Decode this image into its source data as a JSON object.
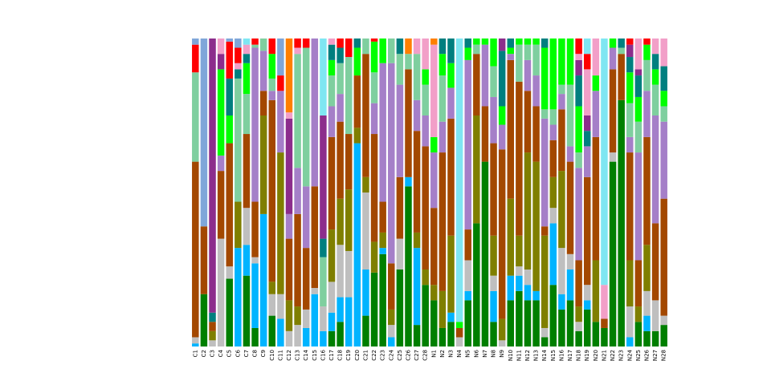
{
  "chart_data": {
    "type": "stacked_bar",
    "categories": [
      "C1",
      "C2",
      "C3",
      "C4",
      "C5",
      "C6",
      "C7",
      "C8",
      "C9",
      "C10",
      "C11",
      "C12",
      "C13",
      "C14",
      "C15",
      "C16",
      "C17",
      "C18",
      "C19",
      "C20",
      "C21",
      "C22",
      "C23",
      "C24",
      "C25",
      "C26",
      "C27",
      "C28",
      "N1",
      "N2",
      "N3",
      "N4",
      "N5",
      "N6",
      "N7",
      "N8",
      "N9",
      "N10",
      "N11",
      "N12",
      "N13",
      "N14",
      "N15",
      "N16",
      "N17",
      "N18",
      "N19",
      "N20",
      "N21",
      "N22",
      "N23",
      "N24",
      "N25",
      "N26",
      "N27",
      "N28"
    ],
    "ylim": [
      0,
      100
    ],
    "series": [
      {
        "color": "#007f00",
        "values": [
          0,
          17,
          0,
          0,
          22,
          0,
          23,
          6,
          0,
          10,
          0,
          0,
          0,
          0,
          0,
          0,
          5,
          8,
          0,
          0,
          10,
          24,
          30,
          0,
          25,
          52,
          7,
          20,
          15,
          6,
          8,
          0,
          15,
          40,
          60,
          8,
          0,
          15,
          18,
          15,
          15,
          3,
          20,
          12,
          15,
          5,
          12,
          8,
          6,
          60,
          80,
          0,
          8,
          5,
          5,
          7
        ]
      },
      {
        "color": "#00b4ff",
        "values": [
          1,
          0,
          0,
          0,
          0,
          32,
          10,
          21,
          43,
          0,
          9,
          0,
          0,
          6,
          17,
          5,
          6,
          8,
          16,
          66,
          15,
          0,
          2,
          3,
          0,
          3,
          25,
          0,
          0,
          0,
          3,
          0,
          3,
          0,
          0,
          10,
          0,
          8,
          5,
          5,
          3,
          0,
          20,
          5,
          10,
          0,
          3,
          0,
          0,
          0,
          0,
          3,
          0,
          5,
          0,
          0
        ]
      },
      {
        "color": "#bfbfbf",
        "values": [
          2,
          0,
          2,
          35,
          4,
          0,
          12,
          2,
          0,
          7,
          8,
          5,
          7,
          6,
          2,
          8,
          10,
          17,
          15,
          0,
          25,
          0,
          0,
          4,
          10,
          0,
          0,
          0,
          0,
          0,
          0,
          3,
          10,
          0,
          0,
          5,
          2,
          0,
          3,
          5,
          0,
          3,
          5,
          15,
          5,
          3,
          5,
          0,
          0,
          3,
          0,
          10,
          0,
          8,
          10,
          3
        ]
      },
      {
        "color": "#7f7f00",
        "values": [
          0,
          0,
          3,
          0,
          0,
          15,
          0,
          0,
          32,
          4,
          46,
          10,
          6,
          0,
          0,
          0,
          17,
          15,
          20,
          5,
          5,
          10,
          5,
          5,
          0,
          0,
          5,
          5,
          5,
          12,
          25,
          0,
          0,
          35,
          0,
          13,
          7,
          25,
          10,
          38,
          42,
          30,
          10,
          25,
          0,
          5,
          0,
          20,
          0,
          0,
          0,
          15,
          5,
          15,
          0,
          0
        ]
      },
      {
        "color": "#a34800",
        "values": [
          57,
          22,
          3,
          22,
          40,
          0,
          24,
          18,
          8,
          59,
          0,
          20,
          30,
          20,
          33,
          0,
          30,
          25,
          18,
          17,
          40,
          35,
          10,
          15,
          20,
          35,
          33,
          40,
          25,
          45,
          38,
          3,
          10,
          20,
          18,
          30,
          55,
          45,
          50,
          20,
          18,
          3,
          12,
          20,
          30,
          15,
          35,
          40,
          3,
          27,
          15,
          35,
          15,
          35,
          25,
          38
        ]
      },
      {
        "color": "#a57fc8",
        "values": [
          0,
          0,
          0,
          5,
          0,
          0,
          0,
          50,
          13,
          3,
          20,
          8,
          15,
          20,
          48,
          0,
          10,
          9,
          0,
          0,
          0,
          10,
          45,
          65,
          30,
          0,
          10,
          10,
          18,
          10,
          10,
          0,
          55,
          0,
          20,
          15,
          8,
          2,
          0,
          10,
          10,
          35,
          5,
          5,
          5,
          30,
          10,
          15,
          0,
          7,
          0,
          5,
          35,
          15,
          35,
          25
        ]
      },
      {
        "color": "#7fcf9f",
        "values": [
          29,
          0,
          0,
          0,
          0,
          40,
          13,
          1,
          4,
          4,
          0,
          0,
          37,
          45,
          0,
          16,
          10,
          10,
          25,
          0,
          5,
          10,
          0,
          8,
          10,
          5,
          15,
          10,
          0,
          15,
          0,
          0,
          0,
          3,
          0,
          10,
          0,
          0,
          12,
          5,
          10,
          3,
          5,
          3,
          20,
          5,
          0,
          0,
          0,
          0,
          2,
          11,
          10,
          10,
          10,
          5
        ]
      },
      {
        "color": "#00ff00",
        "values": [
          0,
          0,
          0,
          28,
          9,
          0,
          10,
          0,
          0,
          8,
          0,
          0,
          0,
          0,
          0,
          0,
          5,
          0,
          0,
          9,
          0,
          10,
          8,
          0,
          0,
          0,
          0,
          5,
          5,
          7,
          8,
          2,
          4,
          2,
          2,
          9,
          6,
          2,
          2,
          2,
          2,
          20,
          23,
          15,
          15,
          15,
          0,
          5,
          0,
          3,
          0,
          10,
          8,
          5,
          5,
          5
        ]
      },
      {
        "color": "#007f7f",
        "values": [
          0,
          0,
          3,
          0,
          12,
          3,
          3,
          0,
          0,
          0,
          0,
          0,
          0,
          0,
          0,
          6,
          5,
          5,
          0,
          3,
          0,
          0,
          0,
          0,
          5,
          0,
          0,
          0,
          0,
          5,
          8,
          0,
          3,
          0,
          0,
          0,
          18,
          3,
          0,
          0,
          0,
          3,
          0,
          0,
          0,
          10,
          5,
          0,
          0,
          0,
          3,
          5,
          7,
          0,
          5,
          8
        ]
      },
      {
        "color": "#8c2d8c",
        "values": [
          0,
          0,
          89,
          5,
          0,
          0,
          0,
          0,
          0,
          0,
          0,
          31,
          0,
          0,
          0,
          40,
          0,
          0,
          0,
          0,
          0,
          0,
          0,
          0,
          0,
          0,
          0,
          0,
          0,
          0,
          0,
          0,
          0,
          0,
          0,
          0,
          4,
          0,
          0,
          0,
          0,
          0,
          0,
          0,
          0,
          5,
          5,
          0,
          0,
          0,
          0,
          4,
          2,
          0,
          0,
          0
        ]
      },
      {
        "color": "#f29fc8",
        "values": [
          0,
          0,
          0,
          5,
          0,
          2,
          3,
          0,
          0,
          0,
          0,
          2,
          2,
          0,
          0,
          0,
          2,
          0,
          0,
          0,
          0,
          0,
          0,
          0,
          0,
          0,
          5,
          10,
          30,
          0,
          0,
          0,
          0,
          0,
          0,
          0,
          0,
          0,
          0,
          0,
          0,
          0,
          0,
          0,
          0,
          2,
          15,
          12,
          11,
          0,
          0,
          0,
          10,
          0,
          5,
          9
        ]
      },
      {
        "color": "#ff0000",
        "values": [
          9,
          0,
          0,
          0,
          12,
          5,
          0,
          2,
          0,
          5,
          5,
          0,
          3,
          3,
          0,
          0,
          0,
          3,
          6,
          0,
          0,
          1,
          0,
          0,
          0,
          0,
          0,
          0,
          0,
          0,
          0,
          0,
          0,
          0,
          0,
          0,
          0,
          0,
          0,
          0,
          0,
          0,
          0,
          0,
          0,
          5,
          5,
          0,
          0,
          0,
          0,
          2,
          0,
          2,
          0,
          0
        ]
      },
      {
        "color": "#7fe6f2",
        "values": [
          0,
          0,
          0,
          0,
          0,
          0,
          2,
          0,
          0,
          0,
          0,
          0,
          0,
          0,
          0,
          25,
          0,
          0,
          0,
          0,
          0,
          0,
          0,
          0,
          0,
          0,
          0,
          0,
          0,
          0,
          0,
          92,
          0,
          0,
          0,
          0,
          0,
          0,
          0,
          0,
          0,
          0,
          0,
          0,
          0,
          0,
          5,
          0,
          80,
          0,
          0,
          0,
          0,
          0,
          0,
          0
        ]
      },
      {
        "color": "#7fa6d9",
        "values": [
          2,
          61,
          0,
          0,
          1,
          3,
          0,
          0,
          0,
          0,
          12,
          0,
          0,
          0,
          0,
          0,
          0,
          0,
          0,
          0,
          0,
          0,
          0,
          0,
          0,
          0,
          0,
          0,
          0,
          0,
          0,
          0,
          0,
          0,
          0,
          0,
          0,
          0,
          0,
          0,
          0,
          0,
          0,
          0,
          0,
          0,
          0,
          0,
          0,
          0,
          0,
          0,
          0,
          0,
          0,
          0
        ]
      },
      {
        "color": "#ff7f00",
        "values": [
          0,
          0,
          0,
          0,
          0,
          0,
          0,
          0,
          0,
          0,
          0,
          24,
          0,
          0,
          0,
          0,
          0,
          0,
          0,
          0,
          0,
          0,
          0,
          0,
          0,
          5,
          0,
          0,
          2,
          0,
          0,
          0,
          0,
          0,
          0,
          0,
          0,
          0,
          0,
          0,
          0,
          0,
          0,
          0,
          0,
          0,
          0,
          0,
          0,
          0,
          0,
          0,
          0,
          0,
          0,
          0
        ]
      }
    ]
  }
}
